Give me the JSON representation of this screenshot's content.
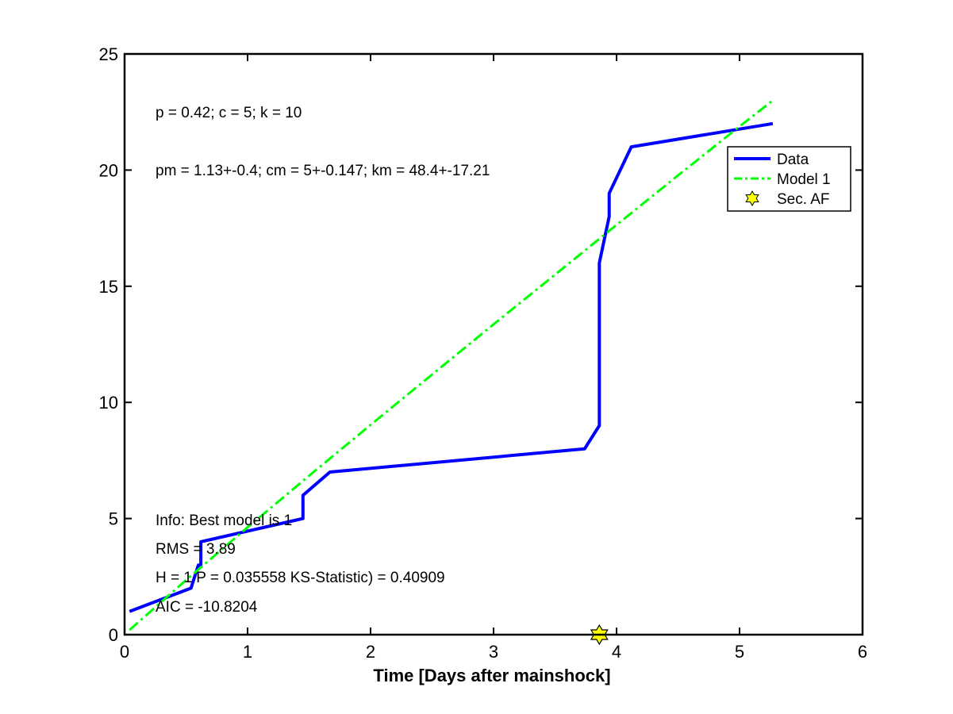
{
  "chart_data": {
    "type": "line",
    "title": "",
    "xlabel": "Time [Days after mainshock]",
    "ylabel": "",
    "xlim": [
      0,
      6
    ],
    "ylim": [
      0,
      25
    ],
    "xticks": [
      "0",
      "1",
      "2",
      "3",
      "4",
      "5",
      "6"
    ],
    "yticks": [
      "0",
      "5",
      "10",
      "15",
      "20",
      "25"
    ],
    "grid": false,
    "legend_position": "top-right",
    "legend": [
      "Data",
      "Model 1",
      "Sec. AF"
    ],
    "series": [
      {
        "name": "Data",
        "style": "solid",
        "color": "#0000ff",
        "x": [
          0.04,
          0.54,
          0.6,
          0.62,
          0.62,
          1.45,
          1.45,
          1.67,
          3.74,
          3.86,
          3.86,
          3.94,
          3.94,
          4.12,
          5.27
        ],
        "y": [
          1,
          2,
          3,
          3,
          4,
          5,
          6,
          7,
          8,
          9,
          16,
          18,
          19,
          21,
          22
        ]
      },
      {
        "name": "Model 1",
        "style": "dash-dot",
        "color": "#00ff00",
        "x": [
          0.04,
          0.5,
          1.0,
          1.5,
          2.0,
          2.5,
          3.0,
          3.5,
          4.0,
          4.5,
          5.0,
          5.27
        ],
        "y": [
          0.2,
          2.35,
          4.62,
          6.84,
          9.03,
          11.2,
          13.36,
          15.5,
          17.64,
          19.77,
          21.88,
          23.0
        ]
      },
      {
        "name": "Sec. AF",
        "style": "marker",
        "marker": "hexagram",
        "color": "#ffff00",
        "x": [
          3.86
        ],
        "y": [
          0
        ]
      }
    ],
    "annotations": {
      "params": "p = 0.42; c = 5; k = 10",
      "params_model": "pm = 1.13+-0.4; cm = 5+-0.147; km = 48.4+-17.21",
      "info": "Info: Best model is 1",
      "rms": "RMS = 3.89",
      "ks": "H = 1 P = 0.035558 KS-Statistic) = 0.40909",
      "aic": "AIC = -10.8204"
    }
  }
}
